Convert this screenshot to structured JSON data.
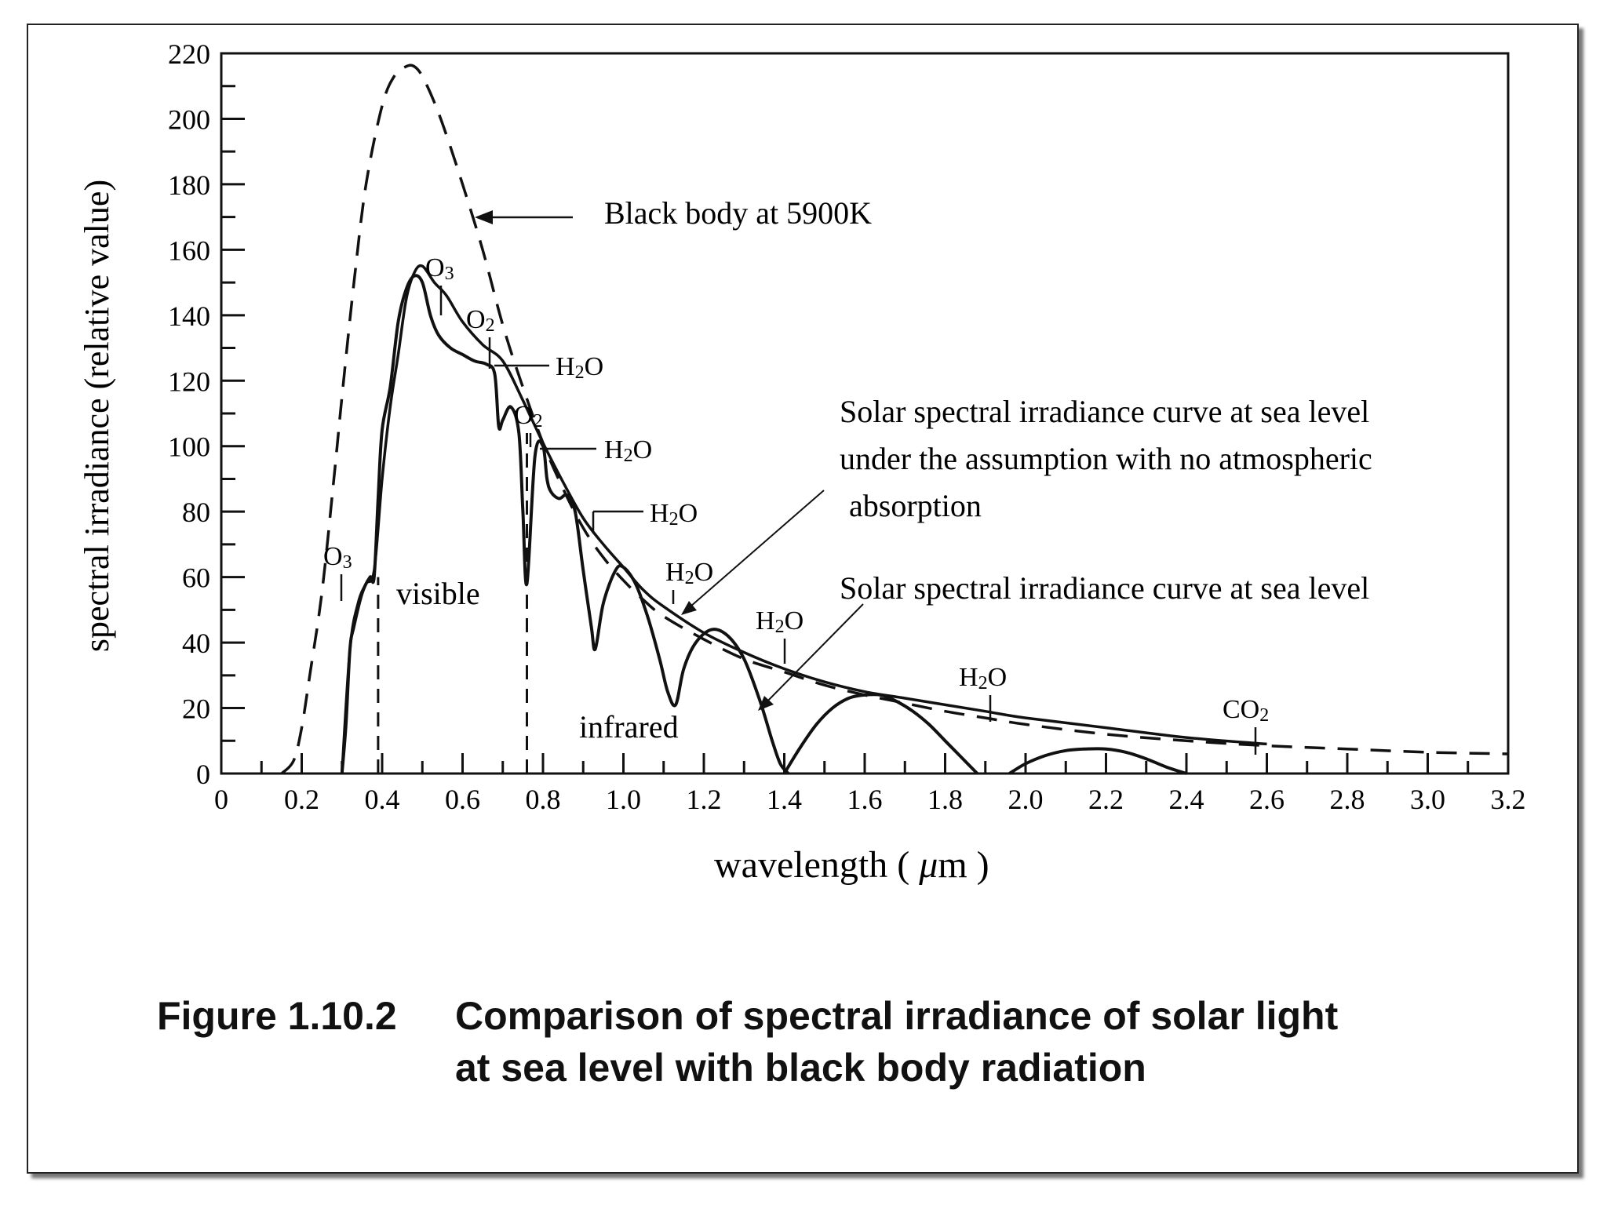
{
  "chart_data": {
    "type": "line",
    "xlabel": "wavelength ( μm )",
    "ylabel": "spectral irradiance (relative value)",
    "xlim": [
      0,
      3.2
    ],
    "ylim": [
      0,
      220
    ],
    "x_ticks": [
      "0",
      "0.2",
      "0.4",
      "0.6",
      "0.8",
      "1.0",
      "1.2",
      "1.4",
      "1.6",
      "1.8",
      "2.0",
      "2.2",
      "2.4",
      "2.6",
      "2.8",
      "3.0",
      "3.2"
    ],
    "y_ticks": [
      "0",
      "20",
      "40",
      "60",
      "80",
      "100",
      "120",
      "140",
      "160",
      "180",
      "200",
      "220"
    ],
    "series": [
      {
        "name": "Black body at 5900K",
        "style": "dashed",
        "x": [
          0.15,
          0.18,
          0.2,
          0.22,
          0.25,
          0.28,
          0.3,
          0.33,
          0.36,
          0.4,
          0.43,
          0.46,
          0.48,
          0.5,
          0.53,
          0.56,
          0.6,
          0.65,
          0.7,
          0.75,
          0.8,
          0.85,
          0.9,
          0.95,
          1.0,
          1.05,
          1.1,
          1.2,
          1.3,
          1.4,
          1.5,
          1.6,
          1.7,
          1.8,
          1.9,
          2.0,
          2.2,
          2.4,
          2.6,
          2.8,
          3.0,
          3.2
        ],
        "y": [
          0,
          4,
          14,
          30,
          55,
          90,
          115,
          150,
          180,
          204,
          213,
          216,
          216,
          213,
          205,
          195,
          180,
          160,
          137,
          118,
          101,
          87,
          75,
          66,
          59,
          53,
          48,
          41,
          35,
          31,
          27,
          24,
          21.5,
          19,
          17,
          15,
          12,
          10,
          8.5,
          7.5,
          6.5,
          6
        ]
      },
      {
        "name": "Solar spectral irradiance curve at sea level under the assumption with no atmospheric absorption",
        "style": "solid",
        "x": [
          0.3,
          0.32,
          0.34,
          0.36,
          0.38,
          0.4,
          0.42,
          0.44,
          0.46,
          0.48,
          0.5,
          0.53,
          0.56,
          0.6,
          0.65,
          0.7,
          0.75,
          0.8,
          0.85,
          0.9,
          0.95,
          1.0,
          1.05,
          1.1,
          1.2,
          1.3,
          1.4,
          1.5,
          1.6,
          1.7,
          1.8,
          1.9,
          2.0,
          2.2,
          2.4,
          2.6
        ],
        "y": [
          0,
          38,
          52,
          58,
          62,
          90,
          112,
          128,
          145,
          153,
          155,
          150,
          146,
          138,
          131,
          126,
          114,
          101,
          89,
          78,
          70,
          63,
          56,
          51,
          43,
          37,
          32,
          28,
          25,
          23,
          21,
          19,
          17,
          14,
          11,
          9
        ]
      },
      {
        "name": "Solar spectral irradiance curve at sea level",
        "style": "solid",
        "segments": [
          {
            "x": [
              0.3,
              0.31,
              0.32,
              0.33,
              0.35,
              0.37,
              0.38,
              0.39,
              0.4,
              0.42,
              0.44,
              0.46,
              0.48,
              0.5,
              0.52,
              0.54,
              0.57,
              0.6,
              0.63,
              0.66,
              0.68,
              0.69,
              0.7,
              0.72,
              0.74,
              0.75,
              0.76,
              0.78,
              0.8,
              0.81,
              0.82,
              0.84,
              0.86,
              0.88,
              0.9,
              0.92,
              0.93,
              0.95,
              0.98,
              1.0,
              1.03,
              1.06,
              1.09,
              1.11,
              1.13,
              1.15,
              1.18,
              1.22,
              1.26,
              1.3,
              1.34,
              1.37,
              1.39,
              1.41
            ],
            "y": [
              0,
              15,
              38,
              45,
              55,
              60,
              60,
              84,
              105,
              118,
              138,
              148,
              152,
              150,
              140,
              134,
              130,
              128,
              126,
              125,
              122,
              106,
              108,
              112,
              104,
              80,
              58,
              97,
              100,
              90,
              86,
              84,
              85,
              80,
              62,
              45,
              38,
              52,
              62,
              63,
              58,
              48,
              35,
              25,
              21,
              32,
              40,
              44,
              42,
              35,
              22,
              10,
              3,
              0
            ]
          },
          {
            "x": [
              1.4,
              1.44,
              1.48,
              1.52,
              1.56,
              1.6,
              1.64,
              1.68,
              1.72,
              1.76,
              1.8,
              1.84,
              1.88
            ],
            "y": [
              0,
              8,
              15,
              20,
              23,
              24,
              24,
              22,
              19,
              15,
              10,
              5,
              0
            ]
          },
          {
            "x": [
              1.96,
              2.0,
              2.05,
              2.1,
              2.15,
              2.2,
              2.25,
              2.3,
              2.35,
              2.4
            ],
            "y": [
              0,
              3,
              5.5,
              7,
              7.5,
              7.5,
              6.5,
              4.5,
              2,
              0
            ]
          }
        ]
      }
    ],
    "dividers": [
      {
        "x": 0.39,
        "label": "visible"
      },
      {
        "x": 0.76,
        "label": "infrared"
      }
    ],
    "annotations": {
      "blackbody_label": "Black body at 5900K",
      "no_absorption_label": [
        "Solar spectral irradiance curve at sea level",
        "under the assumption with no atmospheric",
        "absorption"
      ],
      "sea_level_label": "Solar spectral irradiance curve at sea level",
      "region_visible": "visible",
      "region_infrared": "infrared",
      "absorbers": [
        {
          "id": "o3-uv",
          "main": "O",
          "sub": "3"
        },
        {
          "id": "o3-vis",
          "main": "O",
          "sub": "3"
        },
        {
          "id": "o2-a",
          "main": "O",
          "sub": "2"
        },
        {
          "id": "h2o-a",
          "main": "H",
          "sub": "2",
          "tail": "O"
        },
        {
          "id": "o2-b",
          "main": "O",
          "sub": "2"
        },
        {
          "id": "h2o-b",
          "main": "H",
          "sub": "2",
          "tail": "O"
        },
        {
          "id": "h2o-c",
          "main": "H",
          "sub": "2",
          "tail": "O"
        },
        {
          "id": "h2o-d",
          "main": "H",
          "sub": "2",
          "tail": "O"
        },
        {
          "id": "h2o-e",
          "main": "H",
          "sub": "2",
          "tail": "O"
        },
        {
          "id": "h2o-f",
          "main": "H",
          "sub": "2",
          "tail": "O"
        },
        {
          "id": "co2",
          "main": "CO",
          "sub": "2"
        }
      ]
    }
  },
  "caption": {
    "number": "Figure 1.10.2",
    "line1": "Comparison of spectral irradiance of solar light",
    "line2": "at sea level with black body radiation"
  }
}
